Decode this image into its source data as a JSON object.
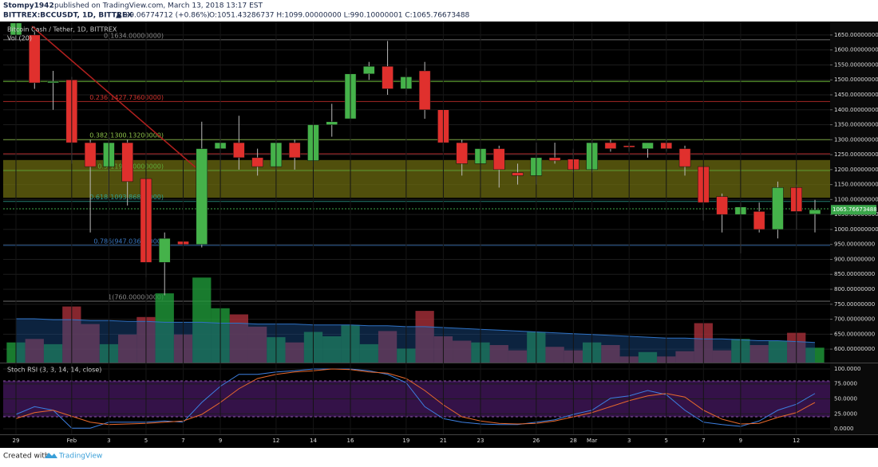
{
  "header": {
    "author": "Stompy1942",
    "published": "published on TradingView.com, March 13, 2018 13:17 EST",
    "symbol": "BITTREX:BCCUSDT, 1D, BITTREX",
    "change": "▲ +9.06774712 (+0.86%)",
    "ohlc": "O:1051.43286737 H:1099.00000000 L:990.10000001 C:1065.76673488"
  },
  "chart_data": {
    "type": "candlestick",
    "title": "Bitcoin Cash / Tether, 1D, BITTREX",
    "categories": [
      "29",
      null,
      null,
      "Feb",
      null,
      "3",
      null,
      "5",
      null,
      "7",
      null,
      "9",
      null,
      null,
      "12",
      null,
      "14",
      null,
      "16",
      null,
      null,
      "19",
      null,
      "21",
      null,
      "23",
      null,
      null,
      "26",
      null,
      "28",
      "Mar",
      null,
      "3",
      null,
      "5",
      null,
      "7",
      null,
      "9",
      null,
      null,
      "12",
      null
    ],
    "open": [
      1650,
      1650,
      1490,
      1500,
      1290,
      1210,
      1290,
      1170,
      890,
      960,
      950,
      1270,
      1290,
      1240,
      1210,
      1290,
      1230,
      1350,
      1370,
      1520,
      1545,
      1470,
      1530,
      1400,
      1290,
      1220,
      1270,
      1190,
      1180,
      1240,
      1235,
      1200,
      1290,
      1280,
      1270,
      1290,
      1270,
      1210,
      1110,
      1050,
      1060,
      1000,
      1140,
      1051.43286737
    ],
    "high": [
      1700,
      1660,
      1530,
      1510,
      1300,
      1310,
      1300,
      1180,
      990,
      1030,
      1360,
      1330,
      1380,
      1270,
      1300,
      1300,
      1360,
      1420,
      1540,
      1560,
      1630,
      1540,
      1560,
      1400,
      1300,
      1310,
      1280,
      1220,
      1290,
      1290,
      1270,
      1300,
      1300,
      1290,
      1290,
      1300,
      1280,
      1210,
      1120,
      1090,
      1090,
      1160,
      1150,
      1099
    ],
    "low": [
      1620,
      1470,
      1400,
      1220,
      990,
      1100,
      1080,
      840,
      780,
      890,
      940,
      1200,
      1200,
      1180,
      1200,
      1200,
      1210,
      1310,
      1360,
      1500,
      1450,
      1450,
      1370,
      1260,
      1180,
      1140,
      1140,
      1150,
      1150,
      1220,
      1190,
      1190,
      1260,
      1260,
      1240,
      1260,
      1180,
      1030,
      990,
      920,
      990,
      970,
      1000,
      990.10000001
    ],
    "close": [
      1690,
      1490,
      1495,
      1290,
      1210,
      1290,
      1160,
      890,
      970,
      950,
      1270,
      1290,
      1240,
      1210,
      1290,
      1240,
      1350,
      1360,
      1520,
      1545,
      1470,
      1510,
      1400,
      1290,
      1220,
      1270,
      1200,
      1180,
      1240,
      1230,
      1200,
      1290,
      1270,
      1275,
      1290,
      1270,
      1210,
      1090,
      1050,
      1075,
      1000,
      1140,
      1060,
      1065.76673488
    ],
    "up_color": "#45b24a",
    "down_color": "#e0302d",
    "ylim": [
      555,
      1695
    ],
    "yticks": [
      {
        "value": 600,
        "label": "600.00000000"
      },
      {
        "value": 650,
        "label": "650.00000000"
      },
      {
        "value": 700,
        "label": "700.00000000"
      },
      {
        "value": 750,
        "label": "750.00000000"
      },
      {
        "value": 800,
        "label": "800.00000000"
      },
      {
        "value": 850,
        "label": "850.00000000"
      },
      {
        "value": 900,
        "label": "900.00000000"
      },
      {
        "value": 950,
        "label": "950.00000000"
      },
      {
        "value": 1000,
        "label": "1000.00000000"
      },
      {
        "value": 1050,
        "label": "1050.00000000"
      },
      {
        "value": 1100,
        "label": "1100.00000000"
      },
      {
        "value": 1150,
        "label": "1150.00000000"
      },
      {
        "value": 1200,
        "label": "1200.00000000"
      },
      {
        "value": 1250,
        "label": "1250.00000000"
      },
      {
        "value": 1300,
        "label": "1300.00000000"
      },
      {
        "value": 1350,
        "label": "1350.00000000"
      },
      {
        "value": 1400,
        "label": "1400.00000000"
      },
      {
        "value": 1450,
        "label": "1450.00000000"
      },
      {
        "value": 1500,
        "label": "1500.00000000"
      },
      {
        "value": 1550,
        "label": "1550.00000000"
      },
      {
        "value": 1600,
        "label": "1600.00000000"
      },
      {
        "value": 1650,
        "label": "1650.00000000"
      }
    ],
    "last_label": "1065.76673488",
    "zone": [
      1106,
      1232
    ],
    "levels": [
      {
        "value": 1495,
        "color": "#6fbf3a"
      },
      {
        "value": 1253,
        "color": "#b0282a"
      },
      {
        "value": 1069,
        "color": "#3fa84a"
      }
    ],
    "fib": [
      {
        "label": "0(1634.00000000)",
        "value": 1634,
        "color": "#888888"
      },
      {
        "label": "0.236(1427.73600000)",
        "value": 1427.736,
        "color": "#d0332e"
      },
      {
        "label": "0.382(1300.13200000)",
        "value": 1300.132,
        "color": "#8fc34a"
      },
      {
        "label": "0.5(1197.00000000)",
        "value": 1197,
        "color": "#5fae3c"
      },
      {
        "label": "0.618(1093.86800000)",
        "value": 1093.868,
        "color": "#2f9e8f"
      },
      {
        "label": "0.786(947.03600000)",
        "value": 947.036,
        "color": "#3a78c2"
      },
      {
        "label": "1(760.00000000)",
        "value": 760,
        "color": "#888888"
      }
    ],
    "volume": {
      "name": "Vol (20)",
      "ylim": [
        0,
        100
      ],
      "values": [
        23,
        27,
        21,
        64,
        44,
        21,
        32,
        52,
        79,
        32,
        97,
        62,
        55,
        41,
        29,
        23,
        35,
        30,
        43,
        21,
        36,
        16,
        59,
        30,
        25,
        23,
        20,
        14,
        35,
        18,
        14,
        23,
        20,
        7,
        12,
        7,
        13,
        45,
        14,
        27,
        20,
        25,
        34,
        17
      ],
      "ma": [
        50,
        50,
        49,
        49,
        48,
        48,
        47,
        47,
        46,
        46,
        46,
        45,
        45,
        44,
        44,
        44,
        43,
        43,
        43,
        42,
        42,
        41,
        41,
        40,
        39,
        38,
        37,
        36,
        35,
        34,
        33,
        32,
        31,
        30,
        29,
        28,
        28,
        27,
        27,
        26,
        25,
        25,
        24,
        23
      ]
    },
    "stoch": {
      "name": "Stoch RSI (3, 3, 14, 14, close)",
      "ylim": [
        -9.3,
        109.3
      ],
      "band": [
        20,
        80
      ],
      "yticks": [
        {
          "value": 100,
          "label": "100.0000"
        },
        {
          "value": 75,
          "label": "75.0000"
        },
        {
          "value": 50,
          "label": "50.0000"
        },
        {
          "value": 25,
          "label": "25.0000"
        },
        {
          "value": 0,
          "label": "0.0000"
        }
      ],
      "k": {
        "color": "#3d7fe0",
        "values": [
          24,
          37,
          31,
          1,
          1,
          11,
          11,
          11,
          13,
          11,
          44,
          71,
          91,
          91,
          95,
          97,
          100,
          100,
          100,
          97,
          91,
          77,
          37,
          17,
          11,
          8,
          7,
          7,
          11,
          15,
          24,
          31,
          51,
          55,
          64,
          57,
          31,
          11,
          7,
          4,
          13,
          31,
          41,
          59
        ]
      },
      "d": {
        "color": "#e8692c",
        "values": [
          17,
          27,
          31,
          21,
          11,
          7,
          8,
          9,
          11,
          13,
          24,
          44,
          67,
          84,
          91,
          95,
          97,
          100,
          99,
          95,
          93,
          84,
          64,
          40,
          20,
          13,
          9,
          8,
          9,
          13,
          20,
          27,
          37,
          47,
          55,
          59,
          53,
          31,
          16,
          8,
          9,
          19,
          27,
          44
        ]
      }
    }
  },
  "footer": {
    "created": "Created with",
    "brand": "TradingView"
  }
}
